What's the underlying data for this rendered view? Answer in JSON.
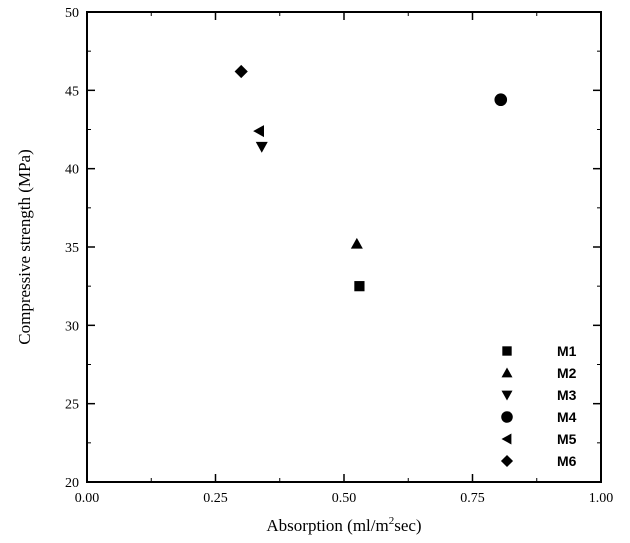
{
  "chart_data": {
    "type": "scatter",
    "title": "",
    "xlabel": "Absorption (ml/m2sec)",
    "xlabel_parts": {
      "before": "Absorption (ml/m",
      "sup": "2",
      "after": "sec)"
    },
    "ylabel": "Compressive strength (MPa)",
    "xlim": [
      0.0,
      1.0
    ],
    "ylim": [
      20,
      50
    ],
    "x_ticks": [
      0.0,
      0.25,
      0.5,
      0.75,
      1.0
    ],
    "x_tick_labels": [
      "0.00",
      "0.25",
      "0.50",
      "0.75",
      "1.00"
    ],
    "y_ticks": [
      20,
      25,
      30,
      35,
      40,
      45,
      50
    ],
    "y_tick_labels": [
      "20",
      "25",
      "30",
      "35",
      "40",
      "45",
      "50"
    ],
    "grid": false,
    "legend_position": "bottom-right",
    "series": [
      {
        "name": "M1",
        "marker": "square",
        "points": [
          {
            "x": 0.53,
            "y": 32.5
          }
        ]
      },
      {
        "name": "M2",
        "marker": "triangle-up",
        "points": [
          {
            "x": 0.525,
            "y": 35.2
          }
        ]
      },
      {
        "name": "M3",
        "marker": "triangle-down",
        "points": [
          {
            "x": 0.34,
            "y": 41.4
          }
        ]
      },
      {
        "name": "M4",
        "marker": "circle",
        "points": [
          {
            "x": 0.805,
            "y": 44.4
          }
        ]
      },
      {
        "name": "M5",
        "marker": "triangle-left",
        "points": [
          {
            "x": 0.335,
            "y": 42.4
          }
        ]
      },
      {
        "name": "M6",
        "marker": "diamond",
        "points": [
          {
            "x": 0.3,
            "y": 46.2
          }
        ]
      }
    ],
    "colors": {
      "marker": "#000000",
      "axis": "#000000"
    }
  }
}
